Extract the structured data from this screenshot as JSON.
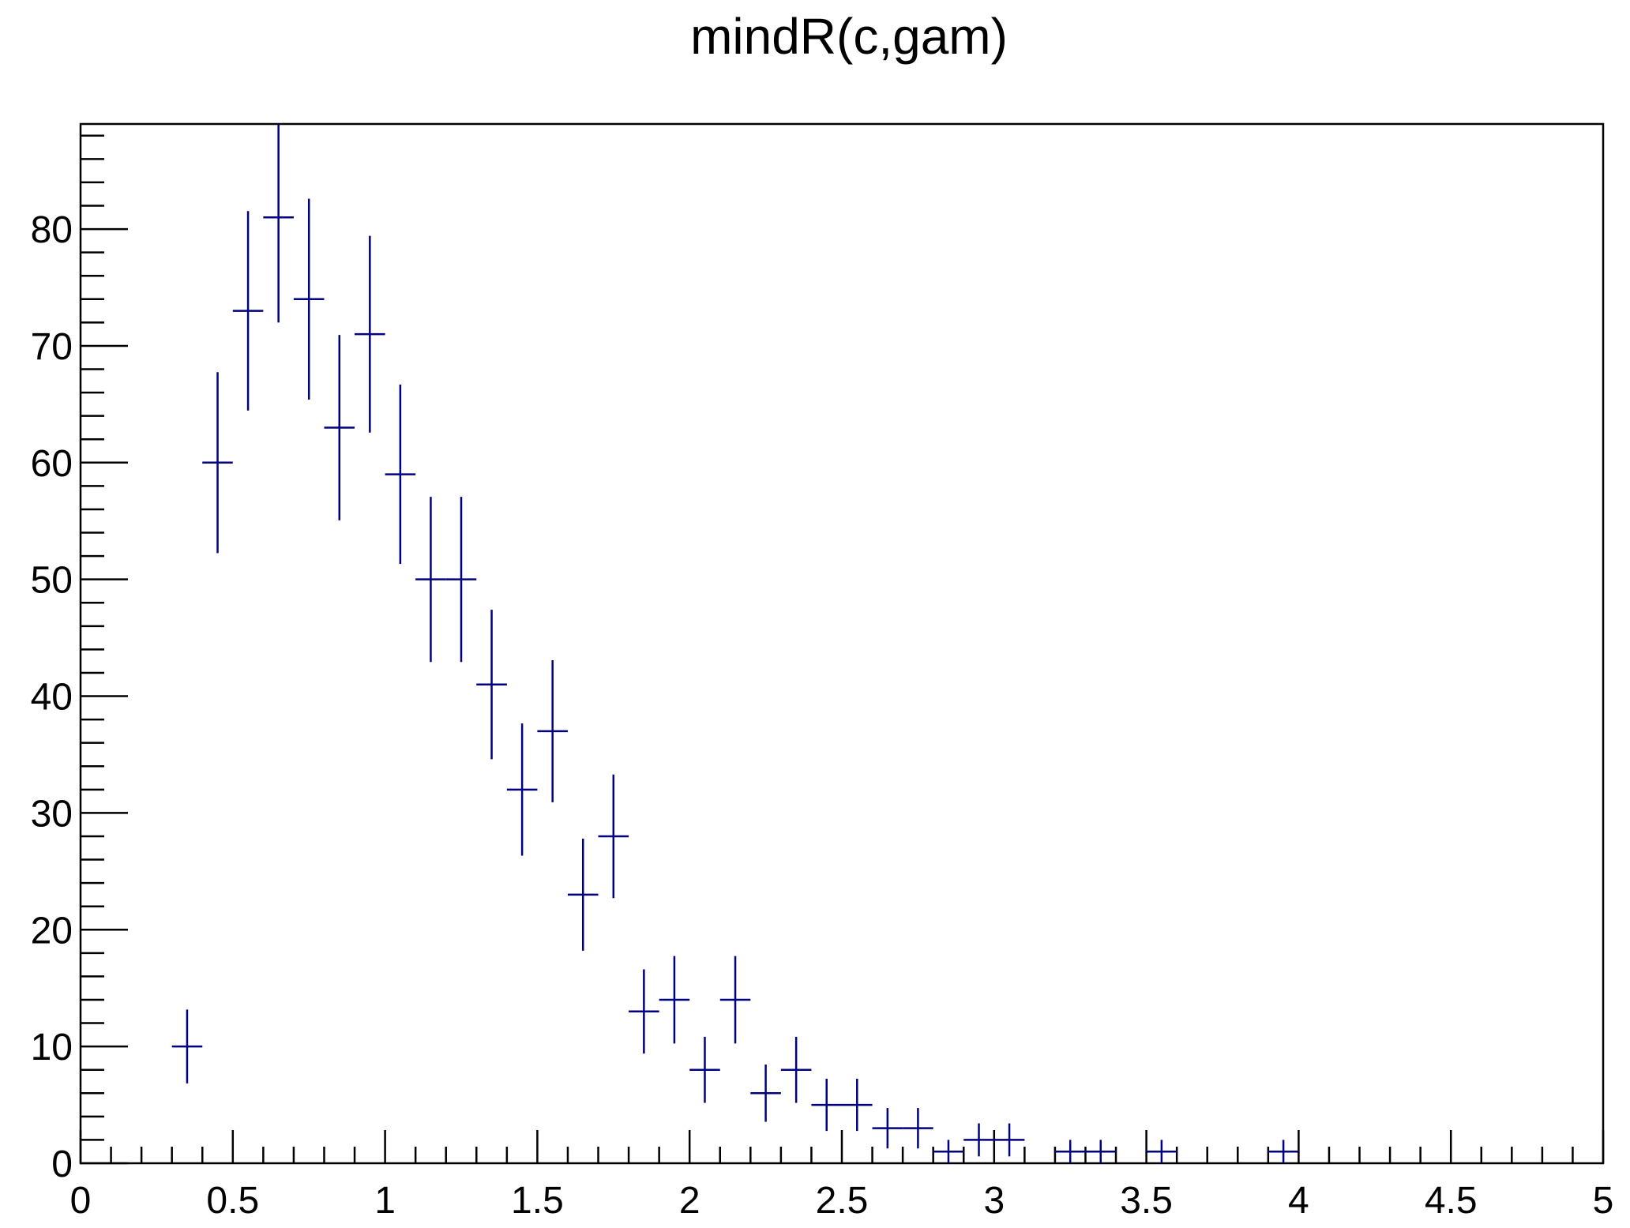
{
  "chart_data": {
    "type": "scatter",
    "title": "mindR(c,gam)",
    "xlabel": "",
    "ylabel": "",
    "xlim": [
      0,
      5
    ],
    "ylim": [
      0,
      89
    ],
    "bin_width": 0.1,
    "marker_color": "#000080",
    "frame_color": "#000000",
    "x_ticks": [
      "0",
      "0.5",
      "1",
      "1.5",
      "2",
      "2.5",
      "3",
      "3.5",
      "4",
      "4.5",
      "5"
    ],
    "y_ticks": [
      "0",
      "10",
      "20",
      "30",
      "40",
      "50",
      "60",
      "70",
      "80"
    ],
    "grid": false,
    "legend": "none",
    "series": [
      {
        "x": [
          0.35,
          0.45,
          0.55,
          0.65,
          0.75,
          0.85,
          0.95,
          1.05,
          1.15,
          1.25,
          1.35,
          1.45,
          1.55,
          1.65,
          1.75,
          1.85,
          1.95,
          2.05,
          2.15,
          2.25,
          2.35,
          2.45,
          2.55,
          2.65,
          2.75,
          2.85,
          2.95,
          3.05,
          3.25,
          3.35,
          3.55,
          3.95
        ],
        "values": [
          10,
          60,
          73,
          81,
          74,
          63,
          71,
          59,
          50,
          50,
          41,
          32,
          37,
          23,
          28,
          13,
          14,
          8,
          14,
          6,
          8,
          5,
          5,
          3,
          3,
          1,
          2,
          2,
          1,
          1,
          1,
          1
        ]
      }
    ]
  }
}
